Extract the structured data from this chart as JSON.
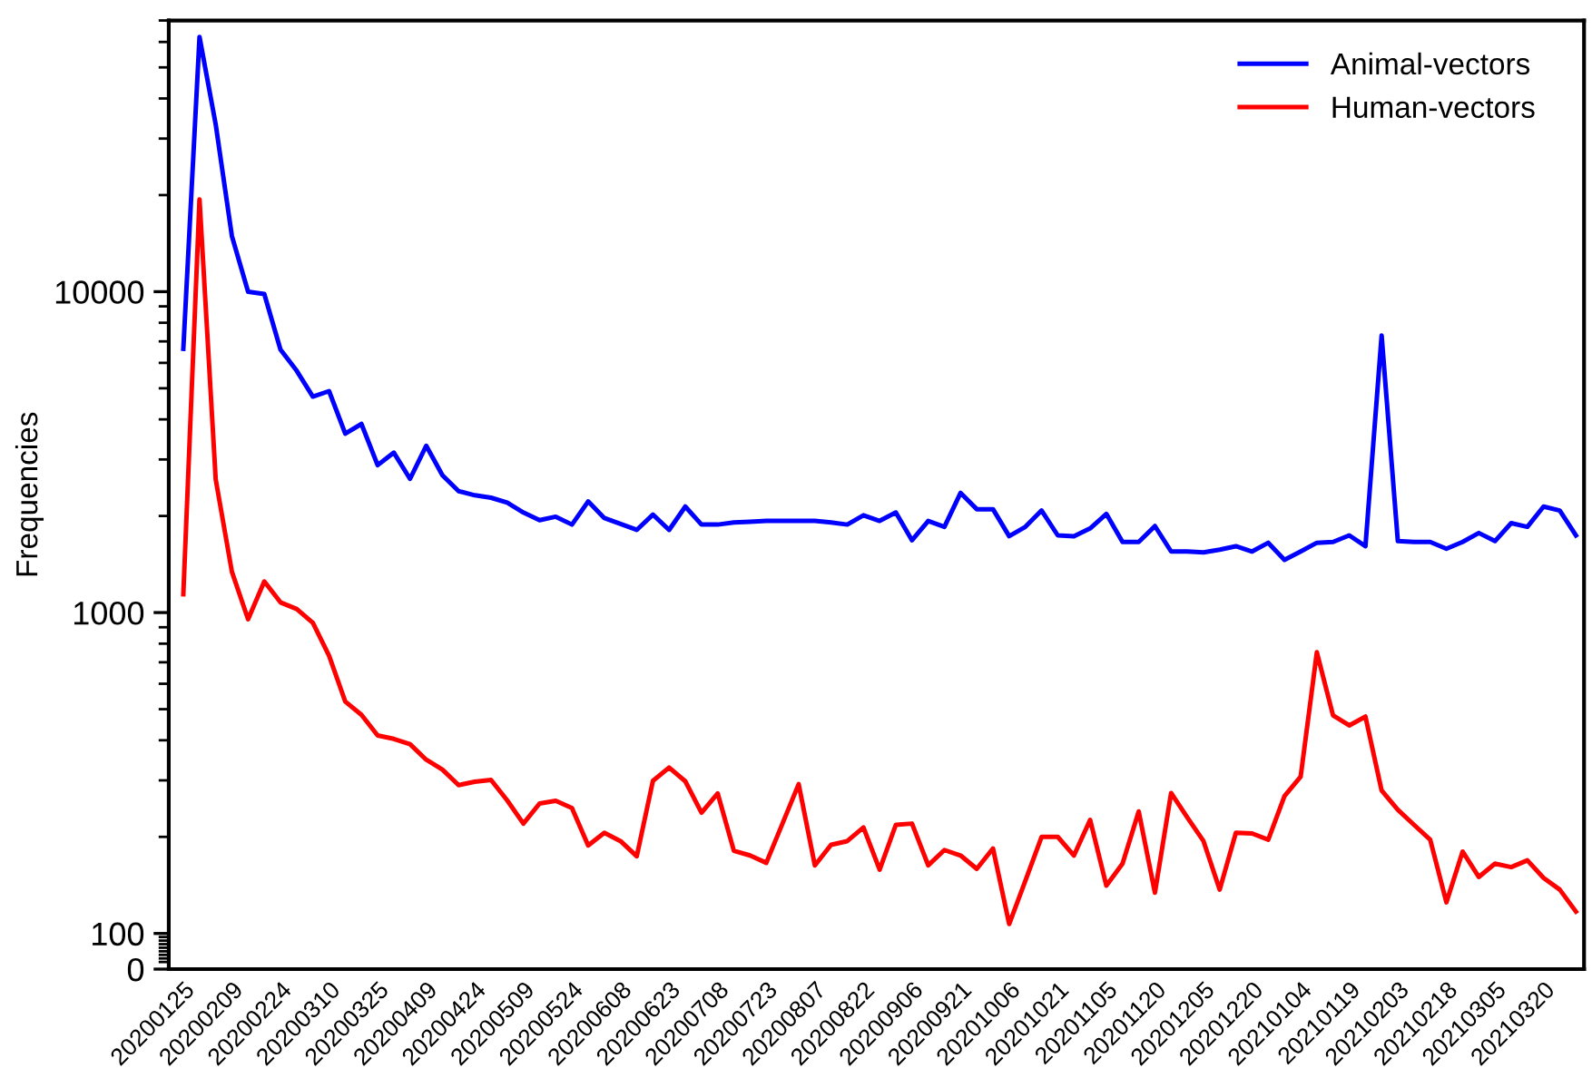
{
  "chart_data": {
    "type": "line",
    "ylabel": "Frequencies",
    "log": "y",
    "grid": false,
    "legend": "top right",
    "marker": "none",
    "line_style": "solid",
    "categories": [
      "20200125",
      null,
      null,
      "20200209",
      null,
      null,
      "20200224",
      null,
      null,
      "20200310",
      null,
      null,
      "20200325",
      null,
      null,
      "20200409",
      null,
      null,
      "20200424",
      null,
      null,
      "20200509",
      null,
      null,
      "20200524",
      null,
      null,
      "20200608",
      null,
      null,
      "20200623",
      null,
      null,
      "20200708",
      null,
      null,
      "20200723",
      null,
      null,
      "20200807",
      null,
      null,
      "20200822",
      null,
      null,
      "20200906",
      null,
      null,
      "20200921",
      null,
      null,
      "20201006",
      null,
      null,
      "20201021",
      null,
      null,
      "20201105",
      null,
      null,
      "20201120",
      null,
      null,
      "20201205",
      null,
      null,
      "20201220",
      null,
      null,
      "20210104",
      null,
      null,
      "20210119",
      null,
      null,
      "20210203",
      null,
      null,
      "20210218",
      null,
      null,
      "20210305",
      null,
      null,
      "20210320",
      null,
      null
    ],
    "ylim": [
      0,
      70000
    ],
    "yticks": [
      0,
      100,
      1000,
      10000
    ],
    "series": [
      {
        "name": "Animal-vectors",
        "color": "#0000ff",
        "values": [
          6640,
          62200,
          33200,
          14900,
          10000,
          9830,
          6600,
          5670,
          4710,
          4900,
          3610,
          3870,
          2880,
          3150,
          2610,
          3310,
          2680,
          2390,
          2320,
          2280,
          2200,
          2050,
          1940,
          1990,
          1880,
          2220,
          1970,
          1890,
          1810,
          2020,
          1810,
          2140,
          1880,
          1880,
          1910,
          1920,
          1930,
          1930,
          1930,
          1930,
          1910,
          1880,
          2010,
          1930,
          2050,
          1680,
          1930,
          1850,
          2360,
          2100,
          2100,
          1730,
          1850,
          2080,
          1740,
          1730,
          1830,
          2030,
          1660,
          1660,
          1860,
          1550,
          1550,
          1540,
          1570,
          1610,
          1550,
          1650,
          1460,
          1550,
          1650,
          1660,
          1740,
          1610,
          7300,
          1670,
          1660,
          1660,
          1580,
          1660,
          1770,
          1670,
          1900,
          1850,
          2140,
          2080,
          1740
        ]
      },
      {
        "name": "Human-vectors",
        "color": "#ff0000",
        "values": [
          1140,
          19400,
          2600,
          1340,
          953,
          1250,
          1076,
          1026,
          929,
          734,
          528,
          480,
          414,
          404,
          389,
          348,
          324,
          290,
          297,
          301,
          260,
          220,
          254,
          259,
          246,
          188,
          206,
          194,
          174,
          299,
          329,
          298,
          238,
          273,
          181,
          175,
          166,
          220,
          292,
          163,
          189,
          194,
          214,
          158,
          218,
          220,
          163,
          182,
          175,
          159,
          184,
          107,
          146,
          200,
          200,
          175,
          226,
          141,
          165,
          240,
          134,
          274,
          230,
          194,
          137,
          206,
          205,
          196,
          268,
          308,
          752,
          478,
          445,
          474,
          279,
          243,
          218,
          196,
          125,
          180,
          150,
          165,
          161,
          169,
          149,
          137,
          117
        ]
      }
    ]
  }
}
